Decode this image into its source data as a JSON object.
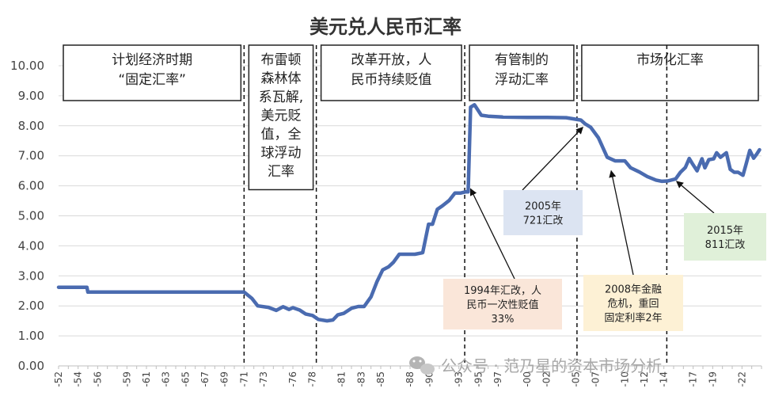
{
  "chart_data": {
    "type": "line",
    "title": "美元兑人民币汇率",
    "xlabel": "",
    "ylabel": "",
    "xlim": [
      1952,
      2024
    ],
    "ylim": [
      0,
      10
    ],
    "yticks": [
      "0.00",
      "1.00",
      "2.00",
      "3.00",
      "4.00",
      "5.00",
      "6.00",
      "7.00",
      "8.00",
      "9.00",
      "10.00"
    ],
    "xticks": [
      {
        "x": 1952,
        "label": "-52"
      },
      {
        "x": 1954,
        "label": "-54"
      },
      {
        "x": 1956,
        "label": "-56"
      },
      {
        "x": 1959,
        "label": "-59"
      },
      {
        "x": 1961,
        "label": "-61"
      },
      {
        "x": 1963,
        "label": "-63"
      },
      {
        "x": 1965,
        "label": "-65"
      },
      {
        "x": 1967,
        "label": "-67"
      },
      {
        "x": 1969,
        "label": "-69"
      },
      {
        "x": 1971,
        "label": "-71"
      },
      {
        "x": 1973,
        "label": "-73"
      },
      {
        "x": 1976,
        "label": "-76"
      },
      {
        "x": 1978,
        "label": "-78"
      },
      {
        "x": 1981,
        "label": "-81"
      },
      {
        "x": 1983,
        "label": "-83"
      },
      {
        "x": 1985,
        "label": "-85"
      },
      {
        "x": 1988,
        "label": "-88"
      },
      {
        "x": 1990,
        "label": "-90"
      },
      {
        "x": 1993,
        "label": "-93"
      },
      {
        "x": 1995,
        "label": "-95"
      },
      {
        "x": 1997,
        "label": "-97"
      },
      {
        "x": 2000,
        "label": "-00"
      },
      {
        "x": 2002,
        "label": "-02"
      },
      {
        "x": 2005,
        "label": "-05"
      },
      {
        "x": 2007,
        "label": "-07"
      },
      {
        "x": 2010,
        "label": "-10"
      },
      {
        "x": 2012,
        "label": "-12"
      },
      {
        "x": 2014,
        "label": "-14"
      },
      {
        "x": 2017,
        "label": "-17"
      },
      {
        "x": 2019,
        "label": "-19"
      },
      {
        "x": 2022,
        "label": "-22"
      }
    ],
    "series": [
      {
        "color": "#4a6bb0",
        "x": [
          1952,
          1954.9,
          1955,
          1971,
          1971.8,
          1972.4,
          1973.5,
          1974.3,
          1975,
          1975.6,
          1976,
          1976.7,
          1977.3,
          1978,
          1978.6,
          1979.5,
          1980.1,
          1980.6,
          1981.2,
          1982,
          1982.7,
          1983.3,
          1984,
          1984.6,
          1985.2,
          1985.8,
          1986.3,
          1986.9,
          1987.4,
          1988.5,
          1989.3,
          1989.9,
          1990.3,
          1990.8,
          1991.3,
          1992,
          1992.6,
          1993.2,
          1993.7,
          1993.95,
          1994.2,
          1994.6,
          1995.3,
          1996,
          1997.5,
          2000,
          2002,
          2004,
          2005.5,
          2005.9,
          2006.5,
          2007.3,
          2008.2,
          2009,
          2010,
          2010.6,
          2011.5,
          2012.3,
          2013.2,
          2013.8,
          2014.4,
          2015.2,
          2015.7,
          2016.2,
          2016.6,
          2016.9,
          2017.4,
          2017.9,
          2018.2,
          2018.6,
          2019.1,
          2019.4,
          2019.8,
          2020.4,
          2020.8,
          2021.2,
          2021.6,
          2022.1,
          2022.4,
          2022.8,
          2023.2,
          2023.5,
          2023.8
        ],
        "y": [
          2.62,
          2.62,
          2.46,
          2.46,
          2.25,
          2.0,
          1.95,
          1.85,
          1.97,
          1.88,
          1.94,
          1.86,
          1.73,
          1.68,
          1.55,
          1.5,
          1.53,
          1.7,
          1.75,
          1.92,
          1.98,
          1.98,
          2.3,
          2.8,
          3.2,
          3.3,
          3.45,
          3.72,
          3.72,
          3.72,
          3.77,
          4.72,
          4.72,
          5.22,
          5.33,
          5.51,
          5.76,
          5.76,
          5.8,
          5.8,
          8.62,
          8.7,
          8.35,
          8.32,
          8.29,
          8.28,
          8.28,
          8.27,
          8.19,
          8.07,
          7.95,
          7.6,
          6.95,
          6.83,
          6.83,
          6.6,
          6.46,
          6.31,
          6.19,
          6.15,
          6.16,
          6.23,
          6.45,
          6.61,
          6.91,
          6.75,
          6.5,
          6.9,
          6.6,
          6.87,
          6.9,
          7.1,
          6.95,
          7.1,
          6.55,
          6.45,
          6.45,
          6.35,
          6.7,
          7.18,
          6.92,
          7.05,
          7.2
        ]
      }
    ],
    "phases": [
      {
        "start": 1952,
        "end": 1971,
        "lines": [
          "计划经济时期",
          "“固定汇率”"
        ]
      },
      {
        "start": 1971,
        "end": 1978.4,
        "lines": [
          "布雷顿",
          "森林体",
          "系瓦解,",
          "美元贬",
          "值，全",
          "球浮动",
          "汇率"
        ]
      },
      {
        "start": 1978.4,
        "end": 1993.6,
        "lines": [
          "改革开放，人",
          "民币持续贬值"
        ]
      },
      {
        "start": 1993.6,
        "end": 2005.1,
        "lines": [
          "有管制的",
          "浮动汇率"
        ]
      },
      {
        "start": 2005.1,
        "end": 2024,
        "lines": [
          "市场化汇率"
        ]
      }
    ],
    "dividers": [
      1971,
      1978.4,
      1993.6,
      2005.1,
      2014.3
    ],
    "annotations": [
      {
        "lines": [
          "1994年汇改，人",
          "民币一次性贬值",
          "33%"
        ],
        "bg": "#fae6d9",
        "target": [
          1994.2,
          5.9
        ]
      },
      {
        "lines": [
          "2005年",
          "721汇改"
        ],
        "bg": "#dce4f2",
        "target": [
          2005.7,
          7.95
        ]
      },
      {
        "lines": [
          "2008年金融",
          "危机，重回",
          "固定利率2年"
        ],
        "bg": "#fdf1d5",
        "target": [
          2008.6,
          6.5
        ]
      },
      {
        "lines": [
          "2015年",
          "811汇改"
        ],
        "bg": "#e0f0d9",
        "target": [
          2015.3,
          6.15
        ]
      }
    ]
  },
  "watermark": "公众号 · 范乃星的资本市场分析"
}
